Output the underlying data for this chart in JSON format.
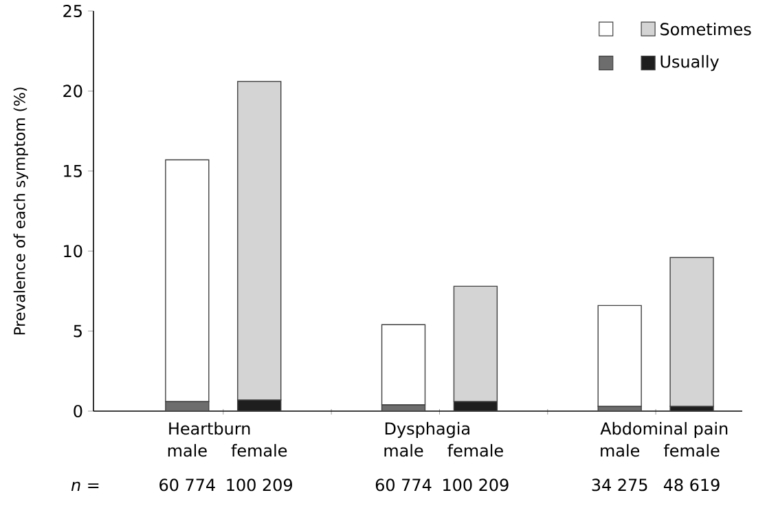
{
  "chart_data": {
    "type": "bar",
    "stacked": true,
    "ylabel": "Prevalence of each symptom (%)",
    "categories": [
      "male",
      "female",
      null,
      "male",
      "female",
      null,
      "male",
      "female"
    ],
    "series": [
      {
        "name": "Usually",
        "colors": [
          "#6d6d6d",
          "#1e1e1e",
          null,
          "#6d6d6d",
          "#1e1e1e",
          null,
          "#6d6d6d",
          "#1e1e1e"
        ],
        "values": [
          0.6,
          0.7,
          null,
          0.4,
          0.6,
          null,
          0.3,
          0.3
        ]
      },
      {
        "name": "Sometimes",
        "colors": [
          "#ffffff",
          "#d4d4d4",
          null,
          "#ffffff",
          "#d4d4d4",
          null,
          "#ffffff",
          "#d4d4d4"
        ],
        "values": [
          15.1,
          19.9,
          null,
          5.0,
          7.2,
          null,
          6.3,
          9.3
        ]
      }
    ],
    "ylim": [
      0,
      25
    ],
    "yticks": [
      0,
      5,
      10,
      15,
      20,
      25
    ],
    "grid": false,
    "legend": "top right",
    "annotations": [
      "Heartburn",
      "Dysphagia",
      "Abdominal pain",
      "*n* =",
      "60 774",
      "100 209",
      "60 774",
      "100 209",
      "34 275",
      "48 619"
    ]
  }
}
